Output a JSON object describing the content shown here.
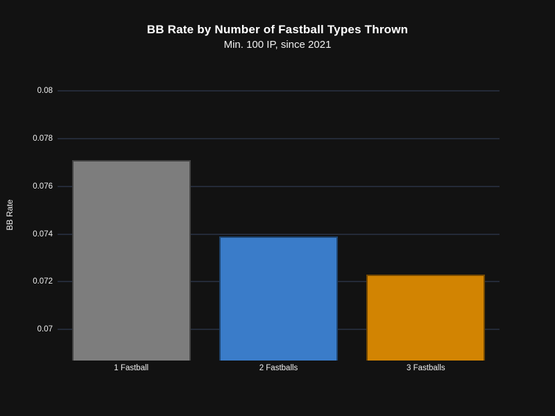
{
  "chart_data": {
    "type": "bar",
    "title": "BB Rate by Number of Fastball Types Thrown",
    "subtitle": "Min. 100 IP, since 2021",
    "categories": [
      "1 Fastball",
      "2 Fastballs",
      "3 Fastballs"
    ],
    "values": [
      0.0771,
      0.0739,
      0.0723
    ],
    "xlabel": "",
    "ylabel": "BB Rate",
    "ylim": [
      0.0687,
      0.0805
    ],
    "yticks": [
      0.07,
      0.072,
      0.074,
      0.076,
      0.078,
      0.08
    ],
    "ytick_labels": [
      "0.07",
      "0.072",
      "0.074",
      "0.076",
      "0.078",
      "0.08"
    ],
    "grid": true,
    "legend": false,
    "colors": {
      "background": "#121212",
      "gridline": "#242a38",
      "text": "#f5f5f5",
      "bars": [
        "#7d7d7d",
        "#3a7cc9",
        "#d28402"
      ]
    }
  }
}
